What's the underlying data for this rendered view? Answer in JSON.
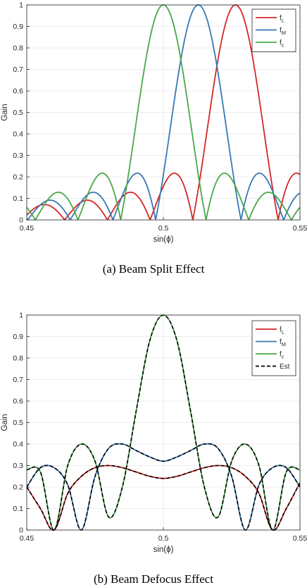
{
  "chart_data": [
    {
      "id": "a",
      "type": "line",
      "caption": "(a)  Beam Split Effect",
      "xlabel": "sin(ϕ)",
      "ylabel": "Gain",
      "xlim": [
        0.45,
        0.55
      ],
      "ylim": [
        0,
        1
      ],
      "xticks": [
        0.45,
        0.5,
        0.55
      ],
      "xtick_labels": [
        "0.45",
        "0.5",
        "0.55"
      ],
      "yticks": [
        0,
        0.1,
        0.2,
        0.3,
        0.4,
        0.5,
        0.6,
        0.7,
        0.8,
        0.9,
        1
      ],
      "ytick_labels": [
        "0",
        "0.1",
        "0.2",
        "0.3",
        "0.4",
        "0.5",
        "0.6",
        "0.7",
        "0.8",
        "0.9",
        "1"
      ],
      "grid": true,
      "legend_position": "top-right",
      "model": {
        "kind": "array_factor",
        "N": 64
      },
      "series": [
        {
          "name": "f",
          "sub": "L",
          "color": "#d62728",
          "peak": 0.5264,
          "dashed": false
        },
        {
          "name": "f",
          "sub": "M",
          "color": "#3a78b5",
          "peak": 0.5128,
          "dashed": false
        },
        {
          "name": "f",
          "sub": "c",
          "color": "#4aa84a",
          "peak": 0.5,
          "dashed": false
        }
      ]
    },
    {
      "id": "b",
      "type": "line",
      "caption": "(b)  Beam Defocus Effect",
      "xlabel": "sin(ϕ)",
      "ylabel": "Gain",
      "xlim": [
        0.45,
        0.55
      ],
      "ylim": [
        0,
        1
      ],
      "xticks": [
        0.45,
        0.5,
        0.55
      ],
      "xtick_labels": [
        "0.45",
        "0.5",
        "0.55"
      ],
      "yticks": [
        0,
        0.1,
        0.2,
        0.3,
        0.4,
        0.5,
        0.6,
        0.7,
        0.8,
        0.9,
        1
      ],
      "ytick_labels": [
        "0",
        "0.1",
        "0.2",
        "0.3",
        "0.4",
        "0.5",
        "0.6",
        "0.7",
        "0.8",
        "0.9",
        "1"
      ],
      "grid": true,
      "legend_position": "top-right",
      "x_samples": [
        0.45,
        0.455,
        0.46,
        0.465,
        0.47,
        0.475,
        0.48,
        0.485,
        0.49,
        0.495,
        0.5,
        0.505,
        0.51,
        0.515,
        0.52,
        0.525,
        0.53,
        0.535,
        0.54,
        0.545,
        0.55
      ],
      "series": [
        {
          "name": "f",
          "sub": "L",
          "color": "#d62728",
          "dashed": false,
          "values": [
            0.2,
            0.1,
            0.0,
            0.17,
            0.25,
            0.29,
            0.3,
            0.29,
            0.27,
            0.25,
            0.24,
            0.25,
            0.27,
            0.29,
            0.3,
            0.29,
            0.25,
            0.17,
            0.0,
            0.1,
            0.22
          ]
        },
        {
          "name": "f",
          "sub": "M",
          "color": "#3a78b5",
          "dashed": false,
          "values": [
            0.2,
            0.29,
            0.29,
            0.21,
            0.0,
            0.25,
            0.38,
            0.4,
            0.37,
            0.34,
            0.32,
            0.34,
            0.37,
            0.4,
            0.38,
            0.25,
            0.0,
            0.21,
            0.29,
            0.29,
            0.2
          ]
        },
        {
          "name": "f",
          "sub": "c",
          "color": "#4aa84a",
          "dashed": false,
          "values": [
            0.28,
            0.27,
            0.0,
            0.3,
            0.4,
            0.32,
            0.06,
            0.2,
            0.55,
            0.88,
            1.0,
            0.88,
            0.55,
            0.2,
            0.06,
            0.32,
            0.4,
            0.3,
            0.0,
            0.27,
            0.28
          ]
        },
        {
          "name": "Est",
          "sub": "",
          "color": "#000000",
          "dashed": true,
          "same_as": "all"
        }
      ]
    }
  ]
}
